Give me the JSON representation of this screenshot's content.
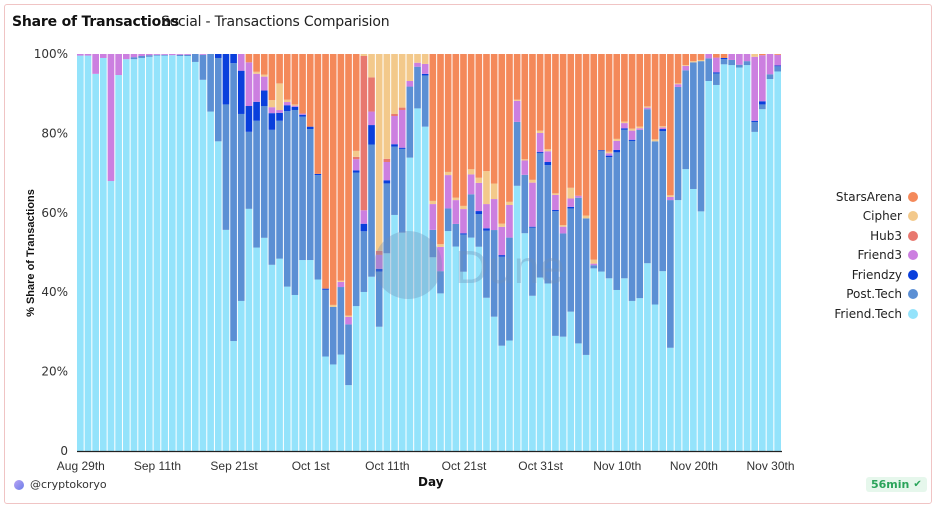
{
  "header": {
    "title": "Share of Transactions",
    "subtitle": "Social - Transactions Comparision"
  },
  "footer": {
    "author": "@cryptokoryo",
    "refresh_badge": "56min",
    "author_icon": "user-avatar-icon",
    "badge_icon": "check-circle-icon"
  },
  "watermark": "Dune",
  "chart_data": {
    "type": "bar",
    "stacked": true,
    "normalized": true,
    "xlabel": "Day",
    "ylabel": "% Share of Transactions",
    "ylim": [
      0,
      100
    ],
    "yticks": [
      "0",
      "20%",
      "40%",
      "60%",
      "80%",
      "100%"
    ],
    "ytick_values": [
      0,
      20,
      40,
      60,
      80,
      100
    ],
    "xtick_labels": [
      {
        "index": 0,
        "label": "Aug 29th"
      },
      {
        "index": 10,
        "label": "Sep 11th"
      },
      {
        "index": 20,
        "label": "Sep 21st"
      },
      {
        "index": 30,
        "label": "Oct 1st"
      },
      {
        "index": 40,
        "label": "Oct 11th"
      },
      {
        "index": 50,
        "label": "Oct 21st"
      },
      {
        "index": 60,
        "label": "Oct 31st"
      },
      {
        "index": 70,
        "label": "Nov 10th"
      },
      {
        "index": 80,
        "label": "Nov 20th"
      },
      {
        "index": 90,
        "label": "Nov 30th"
      }
    ],
    "grid": false,
    "legend_position": "right",
    "categories": [
      "Aug 29",
      "Sep 2",
      "Sep 3",
      "Sep 4",
      "Sep 5",
      "Sep 6",
      "Sep 7",
      "Sep 8",
      "Sep 9",
      "Sep 10",
      "Sep 11",
      "Sep 12",
      "Sep 13",
      "Sep 14",
      "Sep 15",
      "Sep 16",
      "Sep 17",
      "Sep 18",
      "Sep 19",
      "Sep 20",
      "Sep 21",
      "Sep 22",
      "Sep 23",
      "Sep 24",
      "Sep 25",
      "Sep 26",
      "Sep 27",
      "Sep 28",
      "Sep 29",
      "Sep 30",
      "Oct 1",
      "Oct 2",
      "Oct 3",
      "Oct 4",
      "Oct 5",
      "Oct 6",
      "Oct 7",
      "Oct 8",
      "Oct 9",
      "Oct 10",
      "Oct 11",
      "Oct 12",
      "Oct 13",
      "Oct 14",
      "Oct 15",
      "Oct 16",
      "Oct 17",
      "Oct 18",
      "Oct 19",
      "Oct 20",
      "Oct 21",
      "Oct 22",
      "Oct 23",
      "Oct 24",
      "Oct 25",
      "Oct 26",
      "Oct 27",
      "Oct 28",
      "Oct 29",
      "Oct 30",
      "Oct 31",
      "Nov 1",
      "Nov 2",
      "Nov 3",
      "Nov 4",
      "Nov 5",
      "Nov 6",
      "Nov 7",
      "Nov 8",
      "Nov 9",
      "Nov 10",
      "Nov 11",
      "Nov 12",
      "Nov 13",
      "Nov 14",
      "Nov 15",
      "Nov 16",
      "Nov 17",
      "Nov 18",
      "Nov 19",
      "Nov 20",
      "Nov 21",
      "Nov 22",
      "Nov 23",
      "Nov 24",
      "Nov 25",
      "Nov 26",
      "Nov 27",
      "Nov 28",
      "Nov 29",
      "Nov 30",
      "Dec 1"
    ],
    "series": [
      {
        "name": "Friend.Tech",
        "color": "#94e3fb",
        "values": [
          99.6,
          99.6,
          95,
          99,
          68,
          94.7,
          98.7,
          98.7,
          99,
          99.3,
          99.6,
          99.6,
          99.7,
          99.5,
          99.5,
          98,
          93.5,
          85.5,
          78,
          55.7,
          27.7,
          37.8,
          61,
          51.5,
          53.7,
          46.9,
          48.4,
          41.4,
          39.3,
          48.1,
          48.1,
          43.2,
          23.8,
          21.8,
          24.3,
          16.6,
          36.5,
          40.1,
          43.9,
          31.3,
          49.8,
          59.4,
          55,
          73.9,
          86.3,
          81.7,
          48.8,
          39.7,
          55.4,
          51.5,
          45.2,
          53.7,
          51.5,
          38.6,
          33.8,
          26.5,
          27.8,
          66.8,
          54.8,
          39.1,
          43.7,
          42.2,
          29,
          28.8,
          35.1,
          27.1,
          24.2,
          46,
          45.2,
          43.5,
          40.6,
          43.5,
          37.8,
          38.5,
          47.3,
          36.9,
          45.3,
          26,
          63.2,
          71,
          66,
          60.3,
          93.2,
          92.2,
          97.4,
          97.2,
          96.6,
          97.2,
          80.3,
          86.1,
          93.7,
          95.6
        ]
      },
      {
        "name": "Post.Tech",
        "color": "#5b8fd4",
        "values": [
          0,
          0,
          0,
          0,
          0,
          0,
          0,
          0.5,
          0.5,
          0.4,
          0.2,
          0.2,
          0,
          0.3,
          0.3,
          2,
          6.3,
          14.5,
          21,
          31.6,
          70,
          47.1,
          19.4,
          32.1,
          33.2,
          34,
          34.7,
          44.2,
          46.6,
          36.1,
          33,
          26.3,
          16.8,
          14.5,
          17,
          15.3,
          33.6,
          15.3,
          33.3,
          13.9,
          17.6,
          17.2,
          21.1,
          17.9,
          10.5,
          12.9,
          6.9,
          5.6,
          5.7,
          5.7,
          9.4,
          10.9,
          8.2,
          16.9,
          21.8,
          22.4,
          25.9,
          16.1,
          14.7,
          17.2,
          31.3,
          29.8,
          31.4,
          26,
          26,
          36.7,
          34.4,
          0.8,
          30.4,
          30.5,
          34.7,
          37.4,
          40.3,
          42.4,
          38.8,
          41.1,
          35.3,
          37.2,
          28.5,
          24.9,
          31.9,
          37.8,
          5.7,
          2.9,
          1.3,
          1.3,
          0.7,
          1,
          2.5,
          1.2,
          1.2,
          1.3
        ]
      },
      {
        "name": "Friendzy",
        "color": "#0a3fdc",
        "values": [
          0,
          0,
          0,
          0,
          0,
          0,
          0,
          0,
          0,
          0,
          0,
          0,
          0,
          0,
          0,
          0,
          0,
          0,
          1,
          12.7,
          2.3,
          10.9,
          6.5,
          4.8,
          3.9,
          4.2,
          2,
          1.5,
          0.8,
          0.5,
          0.6,
          0.3,
          0.3,
          0,
          0,
          0,
          0.6,
          1.9,
          4.9,
          0.7,
          0.8,
          0.6,
          0.3,
          0,
          0,
          0.4,
          0,
          0,
          0,
          0,
          0.3,
          0,
          0.8,
          0.6,
          0,
          0.4,
          0,
          0,
          0,
          0.2,
          0.3,
          0.8,
          0.3,
          0,
          0.4,
          0,
          0,
          0,
          0.2,
          0.4,
          0.6,
          0.4,
          0.3,
          0,
          0,
          0,
          0.5,
          0,
          0,
          0,
          0,
          0,
          0,
          0.3,
          0.3,
          0,
          0,
          0,
          0.3,
          0.8,
          0,
          0.2
        ]
      },
      {
        "name": "Friend3",
        "color": "#cc7fe0",
        "values": [
          0.4,
          0.4,
          5,
          1,
          32,
          5.3,
          1.3,
          0.8,
          0.5,
          0.3,
          0.2,
          0.2,
          0.3,
          0.2,
          0.2,
          0,
          0.2,
          0,
          0,
          0,
          0,
          4.2,
          11,
          7.1,
          3.5,
          1.5,
          0.7,
          0.8,
          0.3,
          0.3,
          0,
          0,
          0,
          0,
          1.3,
          1.9,
          2.8,
          3.4,
          3.4,
          3.5,
          4.6,
          7.1,
          9.5,
          1.4,
          1,
          2.5,
          6.5,
          6.1,
          8.4,
          6,
          6.1,
          5,
          7.1,
          6.1,
          7.8,
          7.1,
          8.2,
          5.3,
          3.6,
          11.1,
          4.8,
          2.7,
          3.8,
          1.7,
          2.1,
          0.5,
          0,
          0.4,
          0,
          0.6,
          2.3,
          1.3,
          2.3,
          0.4,
          0.4,
          0,
          0.4,
          0.8,
          0.7,
          1.1,
          0,
          0,
          1.1,
          3.7,
          0,
          1.5,
          2.7,
          1.8,
          16.1,
          11.6,
          5.1,
          2.7
        ]
      },
      {
        "name": "Hub3",
        "color": "#e8786f",
        "values": [
          0,
          0,
          0,
          0,
          0,
          0,
          0,
          0,
          0,
          0,
          0,
          0,
          0,
          0,
          0,
          0,
          0,
          0,
          0,
          0,
          0,
          0,
          0,
          0,
          0,
          0,
          0,
          0,
          0,
          0,
          0,
          0,
          0,
          0,
          0,
          0,
          0.6,
          38.9,
          8.6,
          1,
          0.8,
          0.5,
          0.6,
          0,
          0,
          0,
          0,
          0,
          0,
          0,
          0,
          0,
          0,
          0,
          0,
          0,
          0,
          0,
          0,
          0,
          0,
          0,
          0,
          0,
          0,
          0,
          0,
          0,
          0,
          0,
          0,
          0,
          0,
          0,
          0,
          0,
          0,
          0,
          0,
          0,
          0,
          0,
          0,
          0,
          0,
          0,
          0,
          0,
          0,
          0,
          0,
          0
        ]
      },
      {
        "name": "Cipher",
        "color": "#f3c98b",
        "values": [
          0,
          0,
          0,
          0,
          0,
          0,
          0,
          0,
          0,
          0,
          0,
          0,
          0,
          0,
          0,
          0,
          0,
          0,
          0,
          0,
          0,
          0,
          0,
          0.5,
          0.5,
          1.8,
          6.7,
          0.6,
          0.3,
          0,
          0,
          0,
          0,
          0.5,
          0.3,
          0.3,
          1.5,
          0.5,
          5.9,
          49.6,
          26.4,
          15.1,
          13.5,
          6.8,
          2.2,
          2.5,
          0.8,
          0.7,
          0.8,
          0.6,
          0.8,
          1.3,
          1.3,
          8.3,
          3.9,
          0.8,
          0.8,
          0.3,
          0.3,
          0.7,
          0.6,
          0.5,
          0.4,
          0.4,
          2.7,
          0,
          0.7,
          1,
          0,
          0.4,
          0.5,
          0.4,
          0.5,
          0.4,
          0.3,
          0.5,
          0.3,
          0.4,
          0.2,
          0.2,
          0.3,
          0.3,
          0,
          0,
          0,
          0,
          0,
          0,
          0.7,
          0,
          0,
          0
        ]
      },
      {
        "name": "StarsArena",
        "color": "#f4895a",
        "values": [
          0,
          0,
          0,
          0,
          0,
          0,
          0,
          0,
          0,
          0,
          0,
          0,
          0,
          0,
          0,
          0,
          0,
          0,
          0,
          0,
          0,
          0,
          2.1,
          4.5,
          5.2,
          11.6,
          7.4,
          11.5,
          12.7,
          15,
          18.3,
          30.2,
          59.1,
          63.2,
          57.1,
          65.9,
          24.4,
          0,
          0,
          0,
          0,
          0,
          0,
          0,
          0,
          0,
          37,
          47.9,
          29.7,
          36.2,
          38.3,
          29,
          31.2,
          29.5,
          32.6,
          42.7,
          37.2,
          11.5,
          26.5,
          31.7,
          19.3,
          24,
          35.1,
          43.1,
          33.7,
          35.7,
          40.7,
          51.8,
          24.2,
          24.6,
          21.4,
          17,
          18.8,
          18.3,
          13.2,
          21.5,
          18.2,
          35.6,
          7.4,
          2.8,
          1.8,
          1.5,
          0,
          0.9,
          1,
          0,
          0,
          0,
          0,
          0.3,
          0,
          0.2
        ]
      }
    ],
    "legend_order": [
      "StarsArena",
      "Cipher",
      "Hub3",
      "Friend3",
      "Friendzy",
      "Post.Tech",
      "Friend.Tech"
    ]
  }
}
